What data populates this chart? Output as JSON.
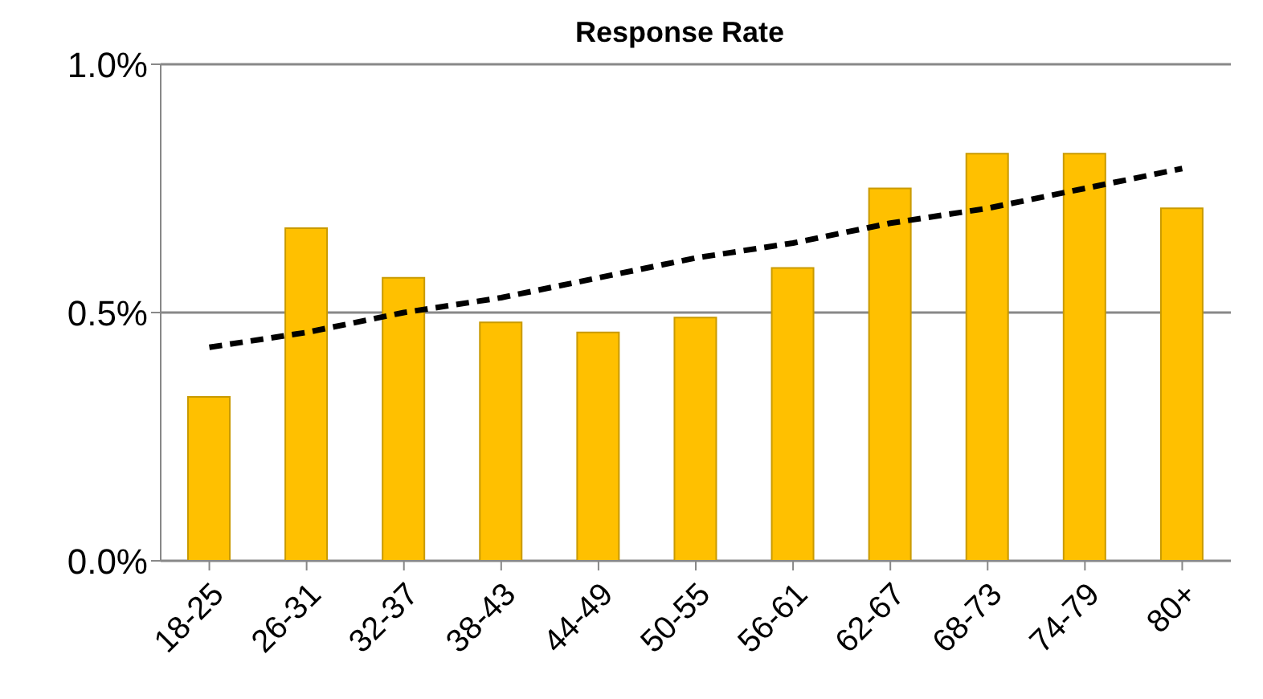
{
  "chart_data": {
    "type": "bar",
    "title": "Response Rate",
    "categories": [
      "18-25",
      "26-31",
      "32-37",
      "38-43",
      "44-49",
      "50-55",
      "56-61",
      "62-67",
      "68-73",
      "74-79",
      "80+"
    ],
    "series": [
      {
        "color": "#ffc000",
        "values": [
          0.33,
          0.67,
          0.57,
          0.48,
          0.46,
          0.49,
          0.59,
          0.75,
          0.82,
          0.82,
          0.71
        ]
      },
      {
        "type": "line",
        "color": "#000000",
        "line_style": "dashed",
        "marker": "none",
        "values": [
          0.43,
          0.46,
          0.5,
          0.53,
          0.57,
          0.61,
          0.64,
          0.68,
          0.71,
          0.75,
          0.79
        ]
      }
    ],
    "ylim": [
      0,
      1
    ],
    "yticks": [
      {
        "value": 0,
        "label": "0.0%"
      },
      {
        "value": 0.5,
        "label": "0.5%"
      },
      {
        "value": 1,
        "label": "1.0%"
      }
    ],
    "grid": "y"
  }
}
